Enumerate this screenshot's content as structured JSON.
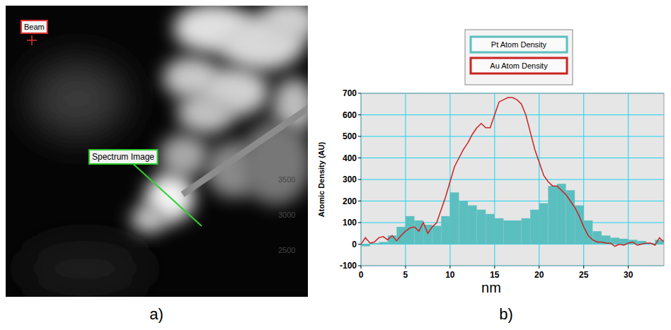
{
  "chart_data": {
    "type": "bar",
    "panel_label": "b)",
    "x_label": "nm",
    "y_label": "Atomic Density (AU)",
    "xlim": [
      0,
      34
    ],
    "xticks": [
      0,
      5,
      10,
      15,
      20,
      25,
      30
    ],
    "ylim": [
      -100,
      700
    ],
    "yticks": [
      -100,
      0,
      100,
      200,
      300,
      400,
      500,
      600,
      700
    ],
    "grid": true,
    "legend": "top",
    "series": [
      {
        "name": "Pt Atom Density",
        "type": "histogram",
        "color": "#5cbfbf",
        "bins": [
          0,
          1,
          2,
          3,
          4,
          5,
          6,
          7,
          8,
          9,
          10,
          11,
          12,
          13,
          14,
          15,
          16,
          17,
          18,
          19,
          20,
          21,
          22,
          23,
          24,
          25,
          26,
          27,
          28,
          29,
          30,
          31,
          32,
          33,
          34
        ],
        "values": [
          -10,
          5,
          10,
          40,
          80,
          130,
          110,
          90,
          85,
          130,
          240,
          200,
          180,
          160,
          140,
          120,
          110,
          110,
          120,
          160,
          190,
          270,
          280,
          250,
          180,
          110,
          60,
          40,
          30,
          25,
          20,
          15,
          5,
          20
        ]
      },
      {
        "name": "Au Atom Density",
        "type": "line",
        "color": "#cc2222",
        "x": [
          0,
          0.5,
          1,
          1.5,
          2,
          2.5,
          3,
          3.5,
          4,
          4.5,
          5,
          5.5,
          6,
          6.5,
          7,
          7.5,
          8,
          8.5,
          9,
          9.5,
          10,
          10.5,
          11,
          11.5,
          12,
          12.5,
          13,
          13.5,
          14,
          14.5,
          15,
          15.5,
          16,
          16.5,
          17,
          17.5,
          18,
          18.5,
          19,
          19.5,
          20,
          20.5,
          21,
          21.5,
          22,
          22.5,
          23,
          23.5,
          24,
          24.5,
          25,
          25.5,
          26,
          26.5,
          27,
          27.5,
          28,
          28.5,
          29,
          29.5,
          30,
          30.5,
          31,
          31.5,
          32,
          32.5,
          33,
          33.5,
          34
        ],
        "values": [
          0,
          30,
          5,
          10,
          30,
          35,
          20,
          40,
          15,
          40,
          60,
          75,
          80,
          60,
          100,
          50,
          80,
          100,
          160,
          220,
          290,
          360,
          400,
          440,
          470,
          510,
          540,
          560,
          540,
          540,
          600,
          660,
          670,
          680,
          680,
          670,
          650,
          600,
          520,
          440,
          380,
          320,
          290,
          270,
          270,
          250,
          230,
          200,
          170,
          130,
          80,
          40,
          20,
          10,
          10,
          5,
          5,
          -10,
          0,
          -5,
          5,
          10,
          -5,
          0,
          5,
          5,
          -5,
          30,
          10
        ]
      }
    ]
  },
  "image_panel": {
    "panel_label": "a)",
    "beam": "Beam",
    "spectrum_image": "Spectrum Image",
    "scale_labels": [
      "3500",
      "3000",
      "2500"
    ]
  }
}
